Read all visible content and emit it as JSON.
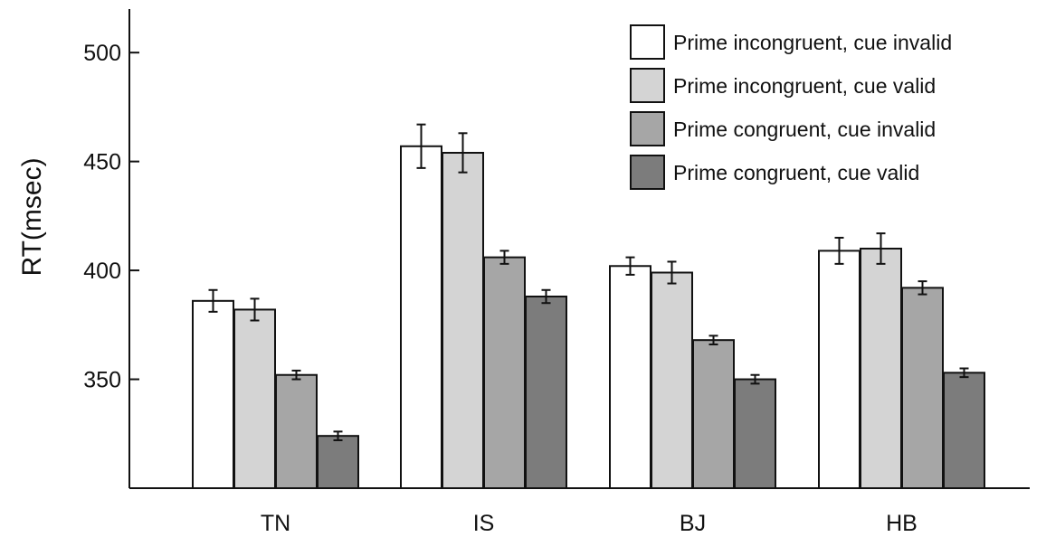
{
  "chart_data": {
    "type": "bar",
    "title": "",
    "xlabel": "",
    "ylabel": "RT(msec)",
    "ylim": [
      300,
      520
    ],
    "yticks": [
      350,
      400,
      450,
      500
    ],
    "categories": [
      "TN",
      "IS",
      "BJ",
      "HB"
    ],
    "series": [
      {
        "name": "Prime incongruent, cue invalid",
        "color": "#ffffff",
        "values": [
          386,
          457,
          402,
          409
        ],
        "errors": [
          5,
          10,
          4,
          6
        ]
      },
      {
        "name": "Prime incongruent, cue valid",
        "color": "#d4d4d4",
        "values": [
          382,
          454,
          399,
          410
        ],
        "errors": [
          5,
          9,
          5,
          7
        ]
      },
      {
        "name": "Prime congruent, cue invalid",
        "color": "#a6a6a6",
        "values": [
          352,
          406,
          368,
          392
        ],
        "errors": [
          2,
          3,
          2,
          3
        ]
      },
      {
        "name": "Prime congruent, cue valid",
        "color": "#7c7c7c",
        "values": [
          324,
          388,
          350,
          353
        ],
        "errors": [
          2,
          3,
          2,
          2
        ]
      }
    ],
    "legend_position": "top-right",
    "grid": false
  }
}
